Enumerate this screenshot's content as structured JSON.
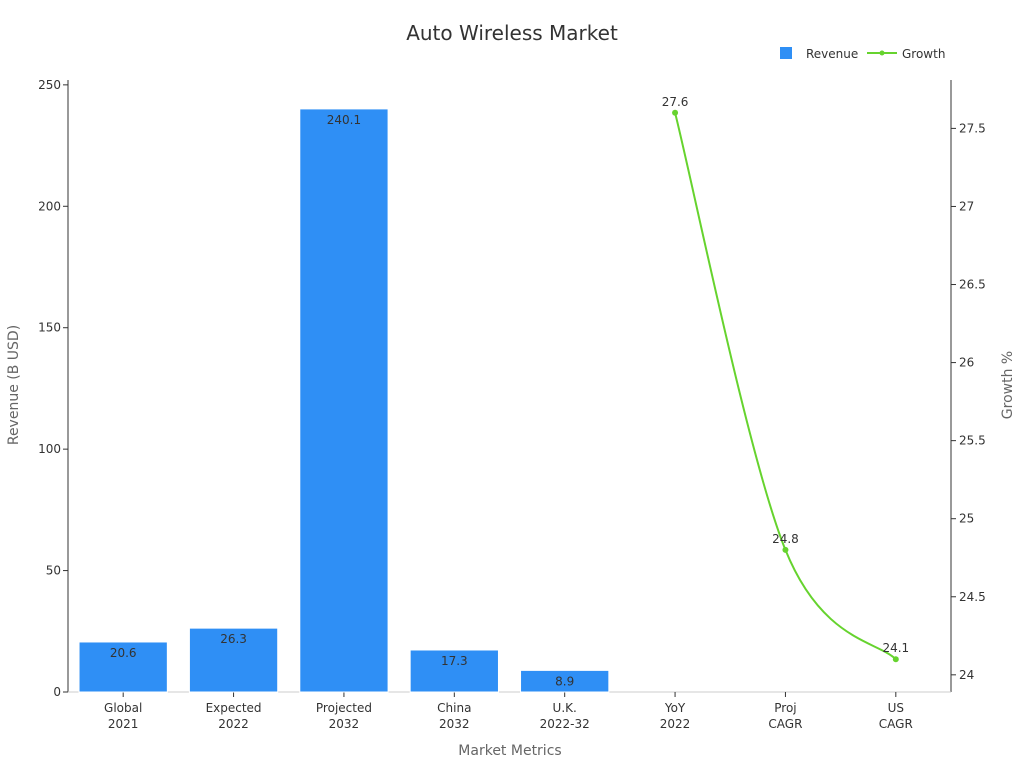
{
  "chart_data": {
    "type": "bar",
    "title": "Auto Wireless Market",
    "xlabel": "Market Metrics",
    "categories": [
      [
        "Global",
        "2021"
      ],
      [
        "Expected",
        "2022"
      ],
      [
        "Projected",
        "2032"
      ],
      [
        "China",
        "2032"
      ],
      [
        "U.K.",
        "2022-32"
      ],
      [
        "YoY",
        "2022"
      ],
      [
        "Proj",
        "CAGR"
      ],
      [
        "US",
        "CAGR"
      ]
    ],
    "series": [
      {
        "name": "Revenue",
        "type": "bar",
        "axis": "left",
        "color": "#2f8ff5",
        "values": [
          20.6,
          26.3,
          240.1,
          17.3,
          8.9,
          null,
          null,
          null
        ],
        "labels": [
          "20.6",
          "26.3",
          "240.1",
          "17.3",
          "8.9",
          "",
          "",
          ""
        ]
      },
      {
        "name": "Growth",
        "type": "line",
        "axis": "right",
        "color": "#66d32e",
        "values": [
          null,
          null,
          null,
          null,
          null,
          27.6,
          24.8,
          24.1
        ],
        "labels": [
          "",
          "",
          "",
          "",
          "",
          "27.6",
          "24.8",
          "24.1"
        ]
      }
    ],
    "y_left": {
      "label": "Revenue (B USD)",
      "range": [
        0,
        252
      ],
      "ticks": [
        0,
        50,
        100,
        150,
        200,
        250
      ],
      "tick_labels": [
        "0",
        "50",
        "100",
        "150",
        "200",
        "250"
      ]
    },
    "y_right": {
      "label": "Growth %",
      "range": [
        23.89,
        27.81
      ],
      "ticks": [
        24,
        24.5,
        25,
        25.5,
        26,
        26.5,
        27,
        27.5
      ],
      "tick_labels": [
        "24",
        "24.5",
        "25",
        "25.5",
        "26",
        "26.5",
        "27",
        "27.5"
      ]
    },
    "legend": {
      "position": "top-right",
      "entries": [
        "Revenue",
        "Growth"
      ]
    },
    "grid": false
  }
}
